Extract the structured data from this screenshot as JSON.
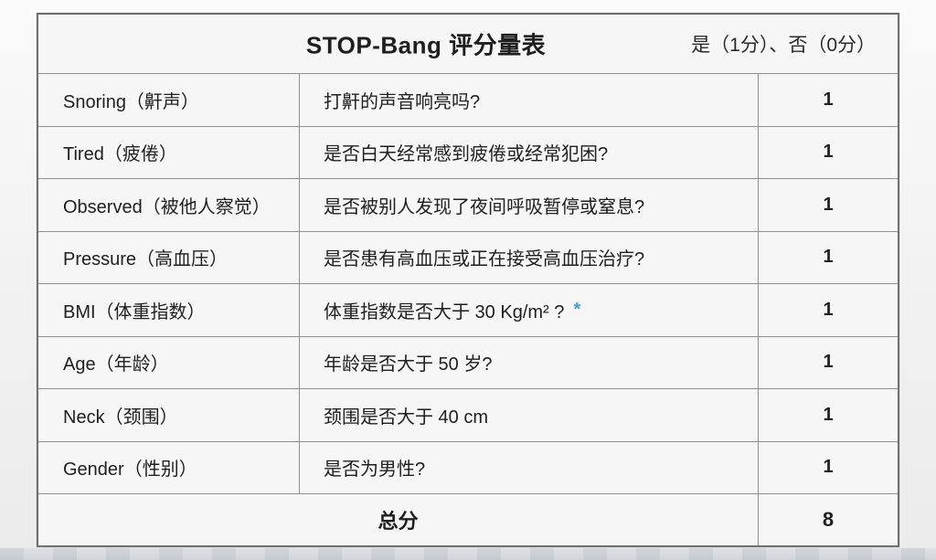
{
  "header": {
    "title": "STOP-Bang 评分量表",
    "legend": "是（1分）、否（0分）"
  },
  "table": {
    "note_color": "#4b9cd3",
    "rows": [
      {
        "label": "Snoring（鼾声）",
        "question": "打鼾的声音响亮吗?",
        "score": "1"
      },
      {
        "label": "Tired（疲倦）",
        "question": "是否白天经常感到疲倦或经常犯困?",
        "score": "1"
      },
      {
        "label": "Observed（被他人察觉）",
        "question": "是否被别人发现了夜间呼吸暂停或窒息?",
        "score": "1"
      },
      {
        "label": "Pressure（高血压）",
        "question": "是否患有高血压或正在接受高血压治疗?",
        "score": "1"
      },
      {
        "label": "BMI（体重指数）",
        "question": "体重指数是否大于 30 Kg/m² ?",
        "note": "*",
        "score": "1"
      },
      {
        "label": "Age（年龄）",
        "question": "年龄是否大于 50 岁?",
        "score": "1"
      },
      {
        "label": "Neck（颈围）",
        "question": "颈围是否大于 40 cm",
        "score": "1"
      },
      {
        "label": "Gender（性别）",
        "question": "是否为男性?",
        "score": "1"
      }
    ],
    "footer": {
      "label": "总分",
      "total": "8"
    }
  }
}
